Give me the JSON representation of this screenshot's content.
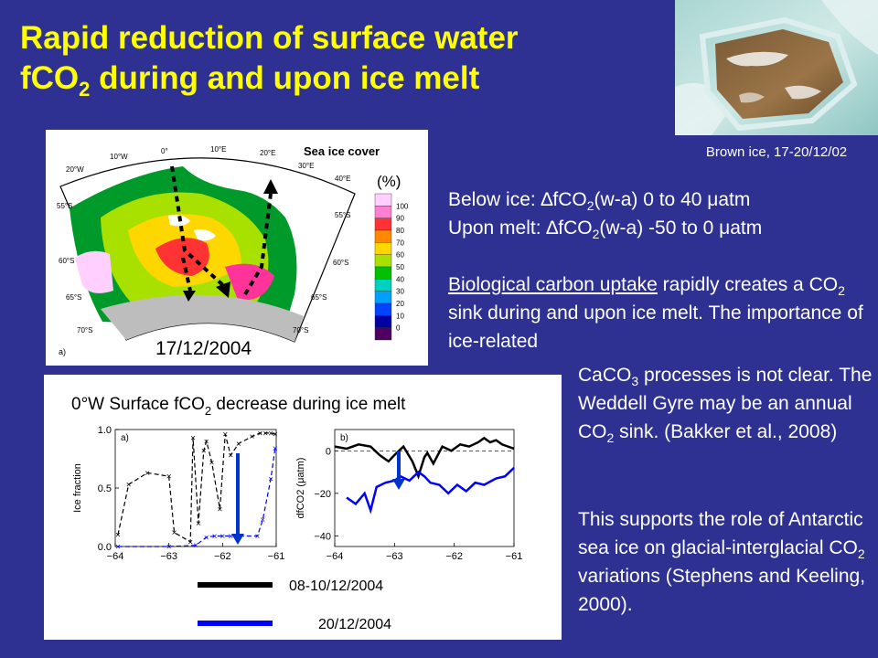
{
  "title": {
    "line1": "Rapid reduction of surface water",
    "line2_pre": "fCO",
    "line2_sub": "2",
    "line2_post": " during and upon ice melt"
  },
  "photo": {
    "caption": "Brown ice, 17-20/12/02"
  },
  "map": {
    "legend_title": "Sea ice cover",
    "legend_unit": "(%)",
    "legend_ticks": [
      "100",
      "90",
      "80",
      "70",
      "60",
      "50",
      "40",
      "30",
      "20",
      "10",
      "0"
    ],
    "legend_colors": [
      "#ffd0ff",
      "#ff7fd0",
      "#ff3333",
      "#ff8800",
      "#ffd700",
      "#a8e000",
      "#00c000",
      "#00d0c0",
      "#00a0ff",
      "#0044ff",
      "#0000a0",
      "#500060"
    ],
    "date": "17/12/2004",
    "panel_label": "a)",
    "lon_labels": [
      "20°W",
      "10°W",
      "0°",
      "10°E",
      "20°E",
      "30°E",
      "40°E"
    ],
    "lat_labels_left": [
      "55°S",
      "60°S",
      "65°S",
      "70°S"
    ],
    "lat_labels_right": [
      "55°S",
      "60°S",
      "65°S",
      "70°S"
    ]
  },
  "chart_data": [
    {
      "type": "scatter",
      "panel_label": "a)",
      "ylabel": "Ice fraction",
      "xlim": [
        -64,
        -61
      ],
      "ylim": [
        0,
        1
      ],
      "xticks": [
        "−64",
        "−63",
        "−62",
        "−61"
      ],
      "yticks": [
        "0.0",
        "0.5",
        "1.0"
      ],
      "series": [
        {
          "color": "#000000",
          "x": [
            -63.95,
            -63.75,
            -63.4,
            -63.0,
            -62.9,
            -62.6,
            -62.55,
            -62.45,
            -62.35,
            -62.3,
            -62.2,
            -62.05,
            -61.95,
            -61.85,
            -61.7,
            -61.45,
            -61.3,
            -61.2,
            -61.1,
            -61.02
          ],
          "y": [
            0.1,
            0.53,
            0.63,
            0.6,
            0.12,
            0.04,
            0.93,
            0.2,
            0.82,
            0.9,
            0.72,
            0.32,
            0.96,
            0.78,
            0.88,
            0.94,
            0.97,
            0.97,
            0.97,
            0.96
          ]
        },
        {
          "color": "#0000ff",
          "x": [
            -63.95,
            -63.0,
            -62.5,
            -62.3,
            -62.15,
            -62.0,
            -61.85,
            -61.7,
            -61.35,
            -61.25,
            -61.1,
            -61.02
          ],
          "y": [
            0.0,
            0.0,
            0.01,
            0.08,
            0.09,
            0.09,
            0.09,
            0.09,
            0.09,
            0.23,
            0.58,
            0.84
          ]
        }
      ]
    },
    {
      "type": "line",
      "panel_label": "b)",
      "ylabel": "dfCO2 (μatm)",
      "xlim": [
        -64,
        -61
      ],
      "ylim": [
        -45,
        10
      ],
      "xticks": [
        "−64",
        "−63",
        "−62",
        "−61"
      ],
      "yticks": [
        "0",
        "−20",
        "−40"
      ],
      "series": [
        {
          "name": "08-10/12/2004",
          "color": "#000000",
          "x": [
            -64,
            -63.8,
            -63.6,
            -63.4,
            -63.25,
            -63.1,
            -63.0,
            -62.85,
            -62.7,
            -62.6,
            -62.5,
            -62.45,
            -62.35,
            -62.2,
            -62.05,
            -61.9,
            -61.75,
            -61.6,
            -61.5,
            -61.4,
            -61.3,
            -61.2,
            -61.1,
            -61.0
          ],
          "y": [
            2,
            1,
            3,
            2,
            -2,
            -5,
            -2,
            2,
            -5,
            -12,
            -3,
            -1,
            -6,
            2,
            0,
            3,
            2,
            4,
            6,
            4,
            5,
            3,
            2,
            1
          ]
        },
        {
          "name": "20/12/2004",
          "color": "#0000ff",
          "x": [
            -63.8,
            -63.65,
            -63.5,
            -63.4,
            -63.3,
            -63.15,
            -63.0,
            -62.9,
            -62.75,
            -62.6,
            -62.5,
            -62.4,
            -62.25,
            -62.1,
            -61.95,
            -61.8,
            -61.65,
            -61.5,
            -61.3,
            -61.15,
            -61.0
          ],
          "y": [
            -22,
            -25,
            -20,
            -28,
            -17,
            -15,
            -14,
            -12,
            -14,
            -10,
            -12,
            -15,
            -16,
            -20,
            -16,
            -19,
            -15,
            -16,
            -13,
            -12,
            -8
          ]
        }
      ]
    }
  ],
  "chart_panel": {
    "title_pre": "0°W Surface fCO",
    "title_sub": "2",
    "title_post": " decrease during ice melt",
    "legend": [
      {
        "label": "08-10/12/2004",
        "color": "#000000"
      },
      {
        "label": "20/12/2004",
        "color": "#0000ff"
      }
    ]
  },
  "text": {
    "below_ice_pre": "Below ice: ",
    "delta": "∆",
    "fco": "fCO",
    "sub2": "2",
    "below_ice_post": "(w-a) 0 to 40 μatm",
    "upon_melt_pre": "Upon melt: ",
    "upon_melt_post": "(w-a) -50 to 0 μatm",
    "bio_underlined": "Biological carbon uptake",
    "bio_rest1": " rapidly creates a CO",
    "bio_rest2": " sink during and upon ice melt. The importance of ice-related",
    "caco3_pre": "CaCO",
    "caco3_sub": "3",
    "caco3_post": " processes is not clear. The Weddell Gyre may be an annual CO",
    "caco3_sub2": "2",
    "caco3_post2": " sink. (Bakker et al., 2008)",
    "support_pre": "This supports the role of Antarctic sea ice on glacial-interglacial CO",
    "support_sub": "2",
    "support_post": " variations (Stephens and Keeling, 2000)."
  }
}
